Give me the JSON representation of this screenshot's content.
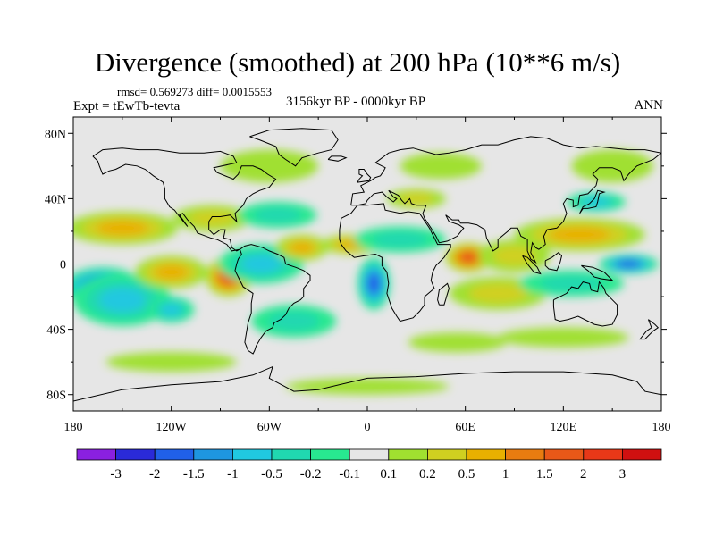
{
  "chart_data": {
    "type": "heatmap",
    "title": "Divergence (smoothed) at 200 hPa (10**6 m/s)",
    "stats": "rmsd= 0.569273 diff= 0.0015553",
    "experiment": "Expt = tEwTb-tevta",
    "period": "3156kyr BP - 0000kyr BP",
    "season": "ANN",
    "x_range": [
      -180,
      180
    ],
    "y_range": [
      -90,
      90
    ],
    "x_ticks": [
      {
        "value": -180,
        "label": "180"
      },
      {
        "value": -120,
        "label": "120W"
      },
      {
        "value": -60,
        "label": "60W"
      },
      {
        "value": 0,
        "label": "0"
      },
      {
        "value": 60,
        "label": "60E"
      },
      {
        "value": 120,
        "label": "120E"
      },
      {
        "value": 180,
        "label": "180"
      }
    ],
    "y_ticks": [
      {
        "value": 80,
        "label": "80N"
      },
      {
        "value": 40,
        "label": "40N"
      },
      {
        "value": 0,
        "label": "0"
      },
      {
        "value": -40,
        "label": "40S"
      },
      {
        "value": -80,
        "label": "80S"
      }
    ],
    "levels": [
      "-3",
      "-2",
      "-1.5",
      "-1",
      "-0.5",
      "-0.2",
      "-0.1",
      "0.1",
      "0.2",
      "0.5",
      "1",
      "1.5",
      "2",
      "3"
    ],
    "colors": [
      "#8a20e0",
      "#2a2ad8",
      "#2060e8",
      "#1e96e0",
      "#20c8e0",
      "#20d8b0",
      "#28e890",
      "#e6e6e6",
      "#a0e030",
      "#d0d020",
      "#e8b000",
      "#e87c10",
      "#e85818",
      "#e83818",
      "#d01010"
    ],
    "blobs": [
      {
        "lon": -162,
        "lat": -14,
        "rx": 24,
        "ry": 12,
        "value": -2.6
      },
      {
        "lon": -150,
        "lat": -22,
        "rx": 30,
        "ry": 16,
        "value": -1.2
      },
      {
        "lon": -120,
        "lat": -28,
        "rx": 14,
        "ry": 8,
        "value": -1.0
      },
      {
        "lon": -120,
        "lat": -5,
        "rx": 22,
        "ry": 10,
        "value": 0.8
      },
      {
        "lon": -150,
        "lat": 22,
        "rx": 34,
        "ry": 10,
        "value": 0.8
      },
      {
        "lon": -95,
        "lat": 28,
        "rx": 24,
        "ry": 8,
        "value": 0.6
      },
      {
        "lon": -85,
        "lat": -8,
        "rx": 14,
        "ry": 12,
        "value": 1.8
      },
      {
        "lon": -65,
        "lat": 0,
        "rx": 26,
        "ry": 12,
        "value": -0.8
      },
      {
        "lon": -55,
        "lat": 30,
        "rx": 24,
        "ry": 8,
        "value": -0.6
      },
      {
        "lon": -45,
        "lat": -35,
        "rx": 26,
        "ry": 10,
        "value": -0.6
      },
      {
        "lon": -40,
        "lat": 10,
        "rx": 16,
        "ry": 8,
        "value": 0.9
      },
      {
        "lon": -10,
        "lat": 12,
        "rx": 18,
        "ry": 6,
        "value": 1.0
      },
      {
        "lon": 4,
        "lat": -12,
        "rx": 10,
        "ry": 16,
        "value": -2.4
      },
      {
        "lon": 20,
        "lat": 15,
        "rx": 28,
        "ry": 8,
        "value": -0.6
      },
      {
        "lon": 62,
        "lat": 4,
        "rx": 14,
        "ry": 9,
        "value": 2.4
      },
      {
        "lon": 90,
        "lat": 5,
        "rx": 22,
        "ry": 10,
        "value": 0.6
      },
      {
        "lon": 80,
        "lat": -18,
        "rx": 30,
        "ry": 10,
        "value": 0.6
      },
      {
        "lon": 130,
        "lat": 18,
        "rx": 40,
        "ry": 10,
        "value": 0.9
      },
      {
        "lon": 140,
        "lat": 38,
        "rx": 18,
        "ry": 6,
        "value": -1.2
      },
      {
        "lon": 160,
        "lat": 0,
        "rx": 18,
        "ry": 6,
        "value": -2.0
      },
      {
        "lon": 125,
        "lat": -12,
        "rx": 32,
        "ry": 8,
        "value": -0.6
      },
      {
        "lon": 120,
        "lat": -45,
        "rx": 40,
        "ry": 6,
        "value": 0.3
      },
      {
        "lon": 55,
        "lat": -48,
        "rx": 30,
        "ry": 6,
        "value": 0.3
      },
      {
        "lon": -120,
        "lat": -60,
        "rx": 40,
        "ry": 6,
        "value": 0.3
      },
      {
        "lon": -60,
        "lat": 60,
        "rx": 30,
        "ry": 10,
        "value": 0.3
      },
      {
        "lon": 45,
        "lat": 60,
        "rx": 25,
        "ry": 8,
        "value": 0.3
      },
      {
        "lon": 150,
        "lat": 60,
        "rx": 25,
        "ry": 10,
        "value": 0.3
      },
      {
        "lon": 0,
        "lat": -75,
        "rx": 50,
        "ry": 5,
        "value": 0.3
      },
      {
        "lon": 30,
        "lat": 40,
        "rx": 18,
        "ry": 6,
        "value": 0.5
      }
    ]
  }
}
